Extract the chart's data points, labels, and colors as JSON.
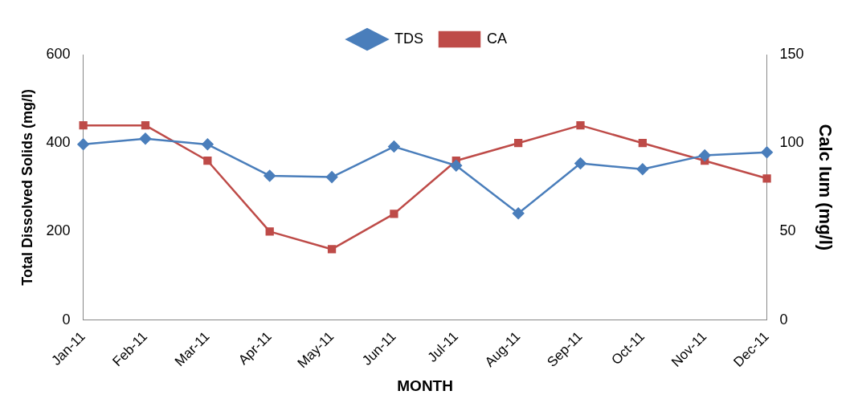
{
  "chart_data": {
    "type": "line",
    "xlabel": "MONTH",
    "ylabel": "Total Dissolved Solids (mg/l)",
    "y2label": "Calc Ium (mg/l)",
    "categories": [
      "Jan-11",
      "Feb-11",
      "Mar-11",
      "Apr-11",
      "May-11",
      "Jun-11",
      "Jul-11",
      "Aug-11",
      "Sep-11",
      "Oct-11",
      "Nov-11",
      "Dec-11"
    ],
    "series": [
      {
        "name": "TDS",
        "color": "#4a7ebb",
        "marker": "diamond",
        "values": [
          397,
          410,
          397,
          326,
          323,
          392,
          349,
          241,
          354,
          341,
          372,
          379
        ]
      },
      {
        "name": "CA",
        "color": "#be4b48",
        "marker": "square",
        "axis": "y2",
        "values": [
          110,
          110,
          90,
          50,
          40,
          60,
          90,
          100,
          110,
          100,
          90,
          80
        ]
      }
    ],
    "ylim": [
      0,
      600
    ],
    "yticks": [
      0,
      200,
      400,
      600
    ],
    "y2lim": [
      0,
      150
    ],
    "y2ticks": [
      0,
      50,
      100,
      150
    ],
    "legend": "top",
    "grid": false
  }
}
